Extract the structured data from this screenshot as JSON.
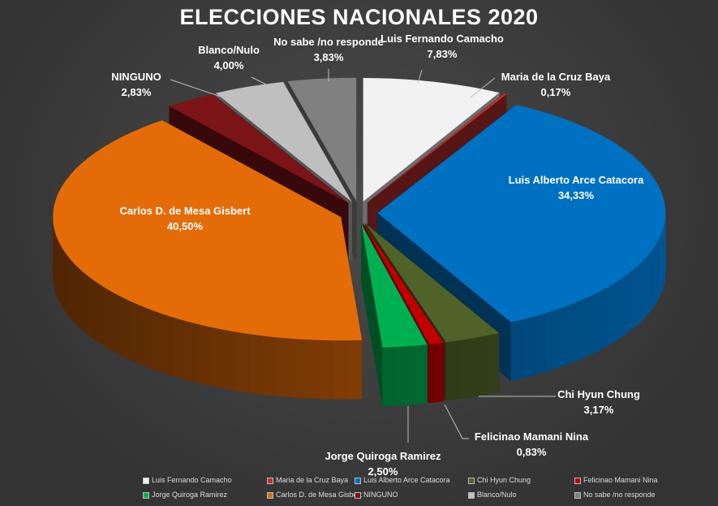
{
  "chart_data": {
    "type": "pie",
    "title": "ELECCIONES NACIONALES 2020",
    "categories": [
      "Luis Fernando Camacho",
      "Maria de la Cruz Baya",
      "Luis Alberto Arce Catacora",
      "Chi Hyun Chung",
      "Felicinao Mamani Nina",
      "Jorge Quiroga Ramirez",
      "Carlos D. de Mesa Gisbert",
      "NINGUNO",
      "Blanco/Nulo",
      "No sabe /no responde"
    ],
    "values": [
      7.83,
      0.17,
      34.33,
      3.17,
      0.83,
      2.5,
      40.5,
      2.83,
      4.0,
      3.83
    ],
    "labels": [
      "7,83%",
      "0,17%",
      "34,33%",
      "3,17%",
      "0,83%",
      "2,50%",
      "40,50%",
      "2,83%",
      "4,00%",
      "3,83%"
    ],
    "colors": [
      "#f2f2f2",
      "#c0302e",
      "#0070c0",
      "#4f6228",
      "#c00000",
      "#00b050",
      "#e36c09",
      "#7b1416",
      "#bfbfbf",
      "#808080"
    ],
    "legend_position": "bottom"
  }
}
